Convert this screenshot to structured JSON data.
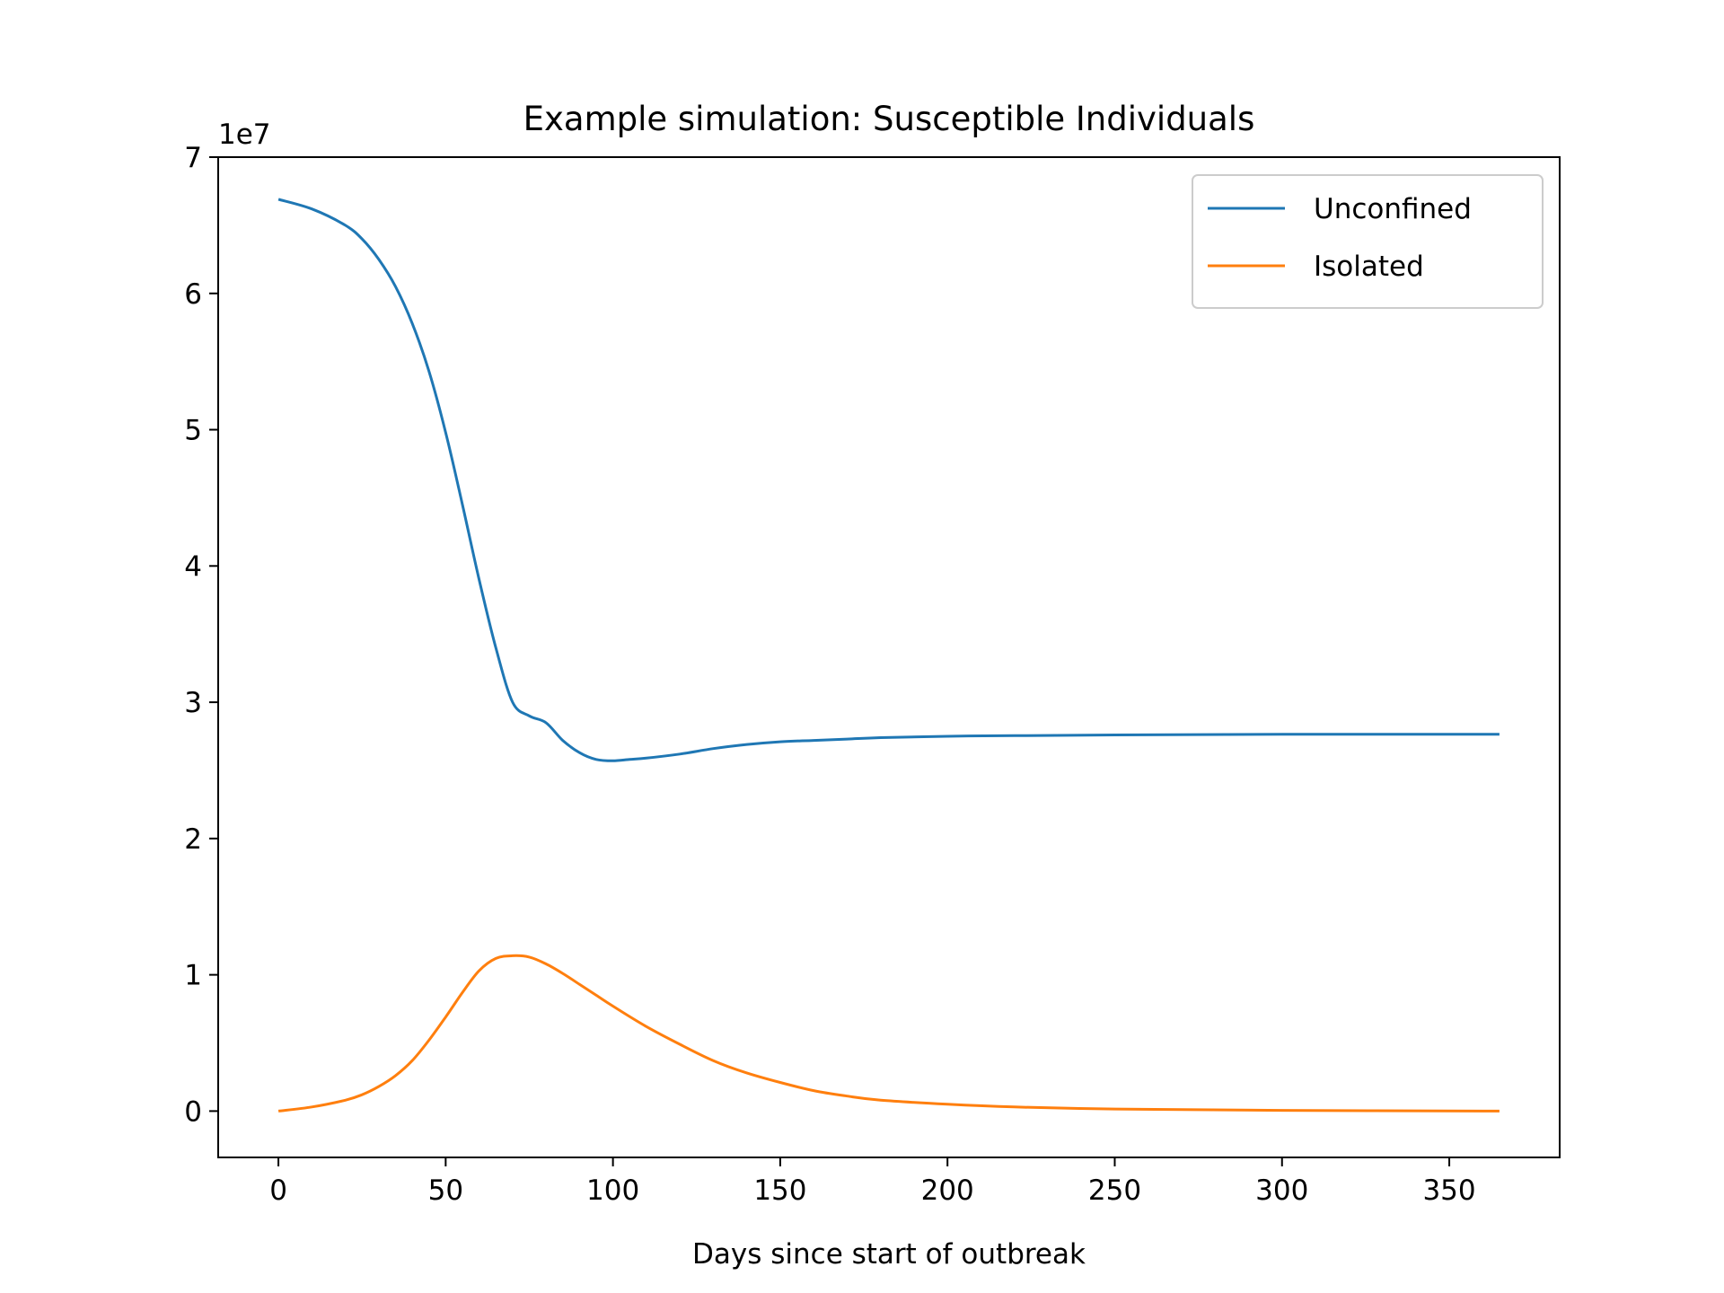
{
  "chart_data": {
    "type": "line",
    "title": "Example simulation: Susceptible Individuals",
    "xlabel": "Days since start of outbreak",
    "ylabel": "",
    "y_offset_label": "1e7",
    "xlim": [
      -18,
      383
    ],
    "ylim": [
      -0.34,
      7.0
    ],
    "y_scale_note": "values in units of 1e7",
    "xticks": [
      0,
      50,
      100,
      150,
      200,
      250,
      300,
      350
    ],
    "yticks": [
      0,
      1,
      2,
      3,
      4,
      5,
      6,
      7
    ],
    "legend_position": "top-right",
    "grid": false,
    "series": [
      {
        "name": "Unconfined",
        "color": "#1f77b4",
        "x": [
          0,
          10,
          20,
          25,
          30,
          35,
          40,
          45,
          50,
          55,
          60,
          65,
          70,
          75,
          80,
          85,
          90,
          95,
          100,
          105,
          110,
          120,
          130,
          140,
          150,
          160,
          170,
          180,
          200,
          220,
          250,
          300,
          365
        ],
        "y": [
          6.69,
          6.62,
          6.5,
          6.4,
          6.25,
          6.05,
          5.78,
          5.43,
          4.98,
          4.45,
          3.9,
          3.4,
          3.0,
          2.9,
          2.85,
          2.72,
          2.63,
          2.58,
          2.57,
          2.58,
          2.59,
          2.62,
          2.66,
          2.69,
          2.71,
          2.72,
          2.73,
          2.74,
          2.75,
          2.755,
          2.76,
          2.765,
          2.765
        ]
      },
      {
        "name": "Isolated",
        "color": "#ff7f0e",
        "x": [
          0,
          10,
          20,
          25,
          30,
          35,
          40,
          45,
          50,
          55,
          60,
          65,
          70,
          75,
          80,
          85,
          90,
          95,
          100,
          110,
          120,
          130,
          140,
          150,
          160,
          170,
          180,
          200,
          220,
          250,
          300,
          365
        ],
        "y": [
          0.0,
          0.03,
          0.08,
          0.12,
          0.18,
          0.26,
          0.37,
          0.52,
          0.69,
          0.87,
          1.03,
          1.12,
          1.14,
          1.13,
          1.08,
          1.01,
          0.93,
          0.85,
          0.77,
          0.62,
          0.49,
          0.37,
          0.28,
          0.21,
          0.15,
          0.11,
          0.08,
          0.05,
          0.03,
          0.015,
          0.005,
          0.0
        ]
      }
    ]
  }
}
